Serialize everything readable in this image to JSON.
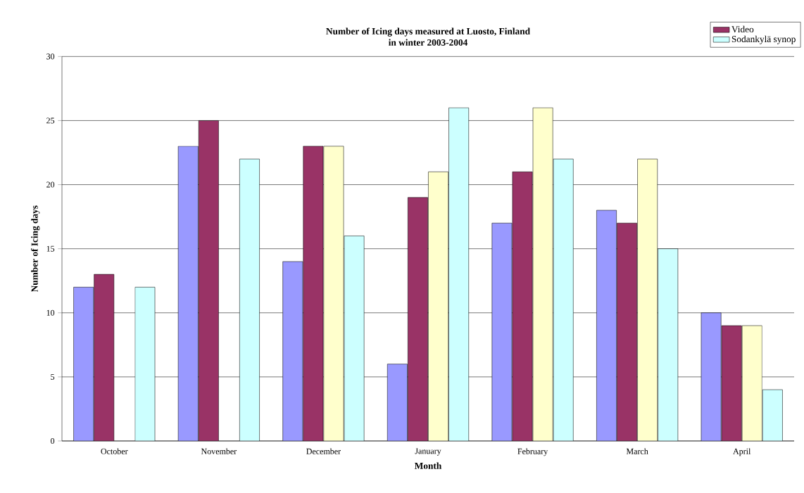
{
  "chart_data": {
    "type": "bar",
    "title": "Number of Icing days measured at Luosto, Finland",
    "subtitle": "in winter 2003-2004",
    "xlabel": "Month",
    "ylabel": "Number of Icing days",
    "categories": [
      "October",
      "November",
      "December",
      "January",
      "February",
      "March",
      "April"
    ],
    "series": [
      {
        "color": "#9999ff",
        "values": [
          12,
          23,
          14,
          6,
          17,
          18,
          10
        ]
      },
      {
        "name": "Video",
        "color": "#993366",
        "values": [
          13,
          25,
          23,
          19,
          21,
          17,
          9
        ]
      },
      {
        "color": "#ffffcc",
        "values": [
          null,
          null,
          23,
          21,
          26,
          22,
          9
        ]
      },
      {
        "name": "Sodankylä synop",
        "color": "#ccffff",
        "values": [
          12,
          22,
          16,
          26,
          22,
          15,
          4
        ]
      }
    ],
    "ylim": [
      0,
      30
    ],
    "yticks": [
      0,
      5,
      10,
      15,
      20,
      25,
      30
    ],
    "grid": "y",
    "legend": "top right"
  }
}
